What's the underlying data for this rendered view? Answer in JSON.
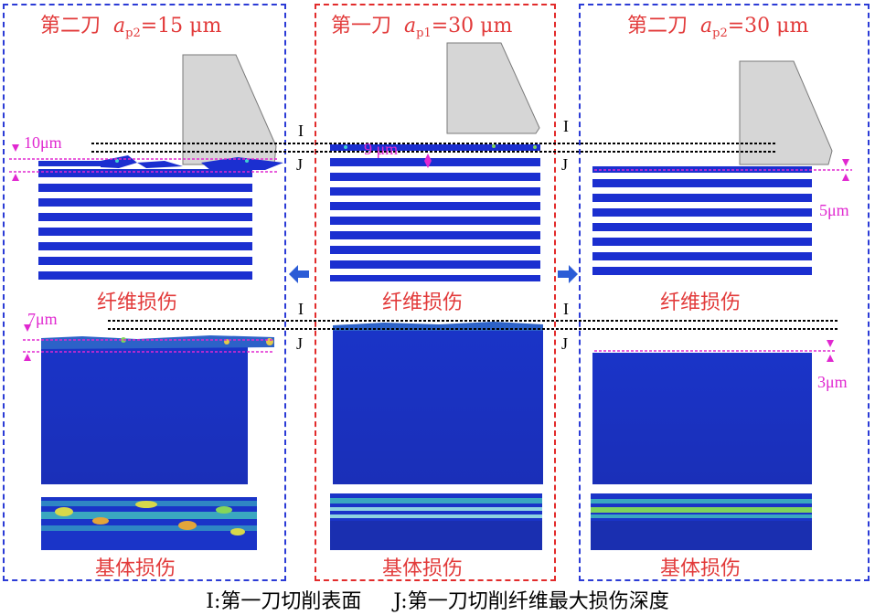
{
  "panels": [
    {
      "title_main": "第二刀",
      "title_a": "a",
      "title_sub": "p2",
      "title_value": "=15 μm",
      "fiber_label": "纤维损伤",
      "matrix_label": "基体损伤",
      "fiber_depth": "10μm",
      "matrix_depth": "7μm"
    },
    {
      "title_main": "第一刀",
      "title_a": "a",
      "title_sub": "p1",
      "title_value": "=30 μm",
      "fiber_label": "纤维损伤",
      "matrix_label": "基体损伤",
      "fiber_depth": "9 μm"
    },
    {
      "title_main": "第二刀",
      "title_a": "a",
      "title_sub": "p2",
      "title_value": "=30 μm",
      "fiber_label": "纤维损伤",
      "matrix_label": "基体损伤",
      "fiber_depth": "5μm",
      "matrix_depth": "3μm"
    }
  ],
  "markers": {
    "i": "I",
    "j": "J"
  },
  "caption": {
    "i_def": "I:第一刀切削表面",
    "j_def": "J:第一刀切削纤维最大损伤深度"
  },
  "colors": {
    "blue_frame": "#2b3bd6",
    "red_frame": "#e22b2b",
    "fe_blue": "#1b2fd0",
    "dimension": "#e028d0",
    "tool": "#d6d6d6"
  }
}
